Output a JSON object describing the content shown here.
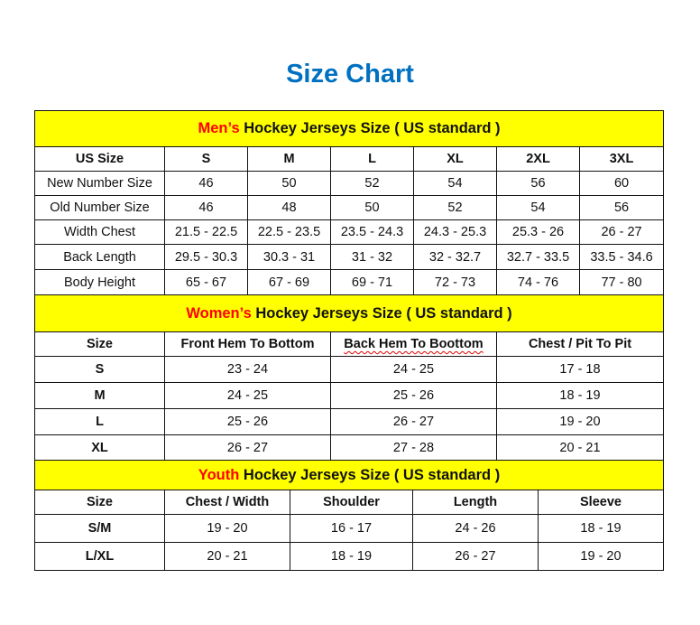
{
  "title": "Size Chart",
  "colors": {
    "title": "#0070C0",
    "section_bg": "#FFFF00",
    "accent": "#FF0000"
  },
  "men": {
    "heading_accent": "Men’s",
    "heading_rest": " Hockey Jerseys Size ( US standard )",
    "columns": [
      "US Size",
      "S",
      "M",
      "L",
      "XL",
      "2XL",
      "3XL"
    ],
    "rows": [
      [
        "New Number Size",
        "46",
        "50",
        "52",
        "54",
        "56",
        "60"
      ],
      [
        "Old Number Size",
        "46",
        "48",
        "50",
        "52",
        "54",
        "56"
      ],
      [
        "Width Chest",
        "21.5 - 22.5",
        "22.5 - 23.5",
        "23.5 - 24.3",
        "24.3 - 25.3",
        "25.3 - 26",
        "26 - 27"
      ],
      [
        "Back Length",
        "29.5 - 30.3",
        "30.3 - 31",
        "31 - 32",
        "32 - 32.7",
        "32.7 - 33.5",
        "33.5 - 34.6"
      ],
      [
        "Body Height",
        "65 - 67",
        "67 - 69",
        "69 - 71",
        "72 - 73",
        "74 - 76",
        "77 - 80"
      ]
    ]
  },
  "women": {
    "heading_accent": "Women’s",
    "heading_rest": " Hockey Jerseys Size ( US standard )",
    "columns": [
      "Size",
      "Front Hem To Bottom",
      "Back Hem To Boottom",
      "Chest / Pit To Pit"
    ],
    "rows": [
      [
        "S",
        "23 - 24",
        "24 - 25",
        "17 - 18"
      ],
      [
        "M",
        "24 - 25",
        "25 - 26",
        "18 - 19"
      ],
      [
        "L",
        "25 - 26",
        "26 - 27",
        "19 - 20"
      ],
      [
        "XL",
        "26 - 27",
        "27 - 28",
        "20 - 21"
      ]
    ]
  },
  "youth": {
    "heading_accent": "Youth",
    "heading_rest": " Hockey Jerseys Size ( US standard )",
    "columns": [
      "Size",
      "Chest / Width",
      "Shoulder",
      "Length",
      "Sleeve"
    ],
    "rows": [
      [
        "S/M",
        "19 - 20",
        "16 - 17",
        "24 - 26",
        "18 - 19"
      ],
      [
        "L/XL",
        "20 - 21",
        "18 - 19",
        "26 - 27",
        "19 - 20"
      ]
    ]
  }
}
